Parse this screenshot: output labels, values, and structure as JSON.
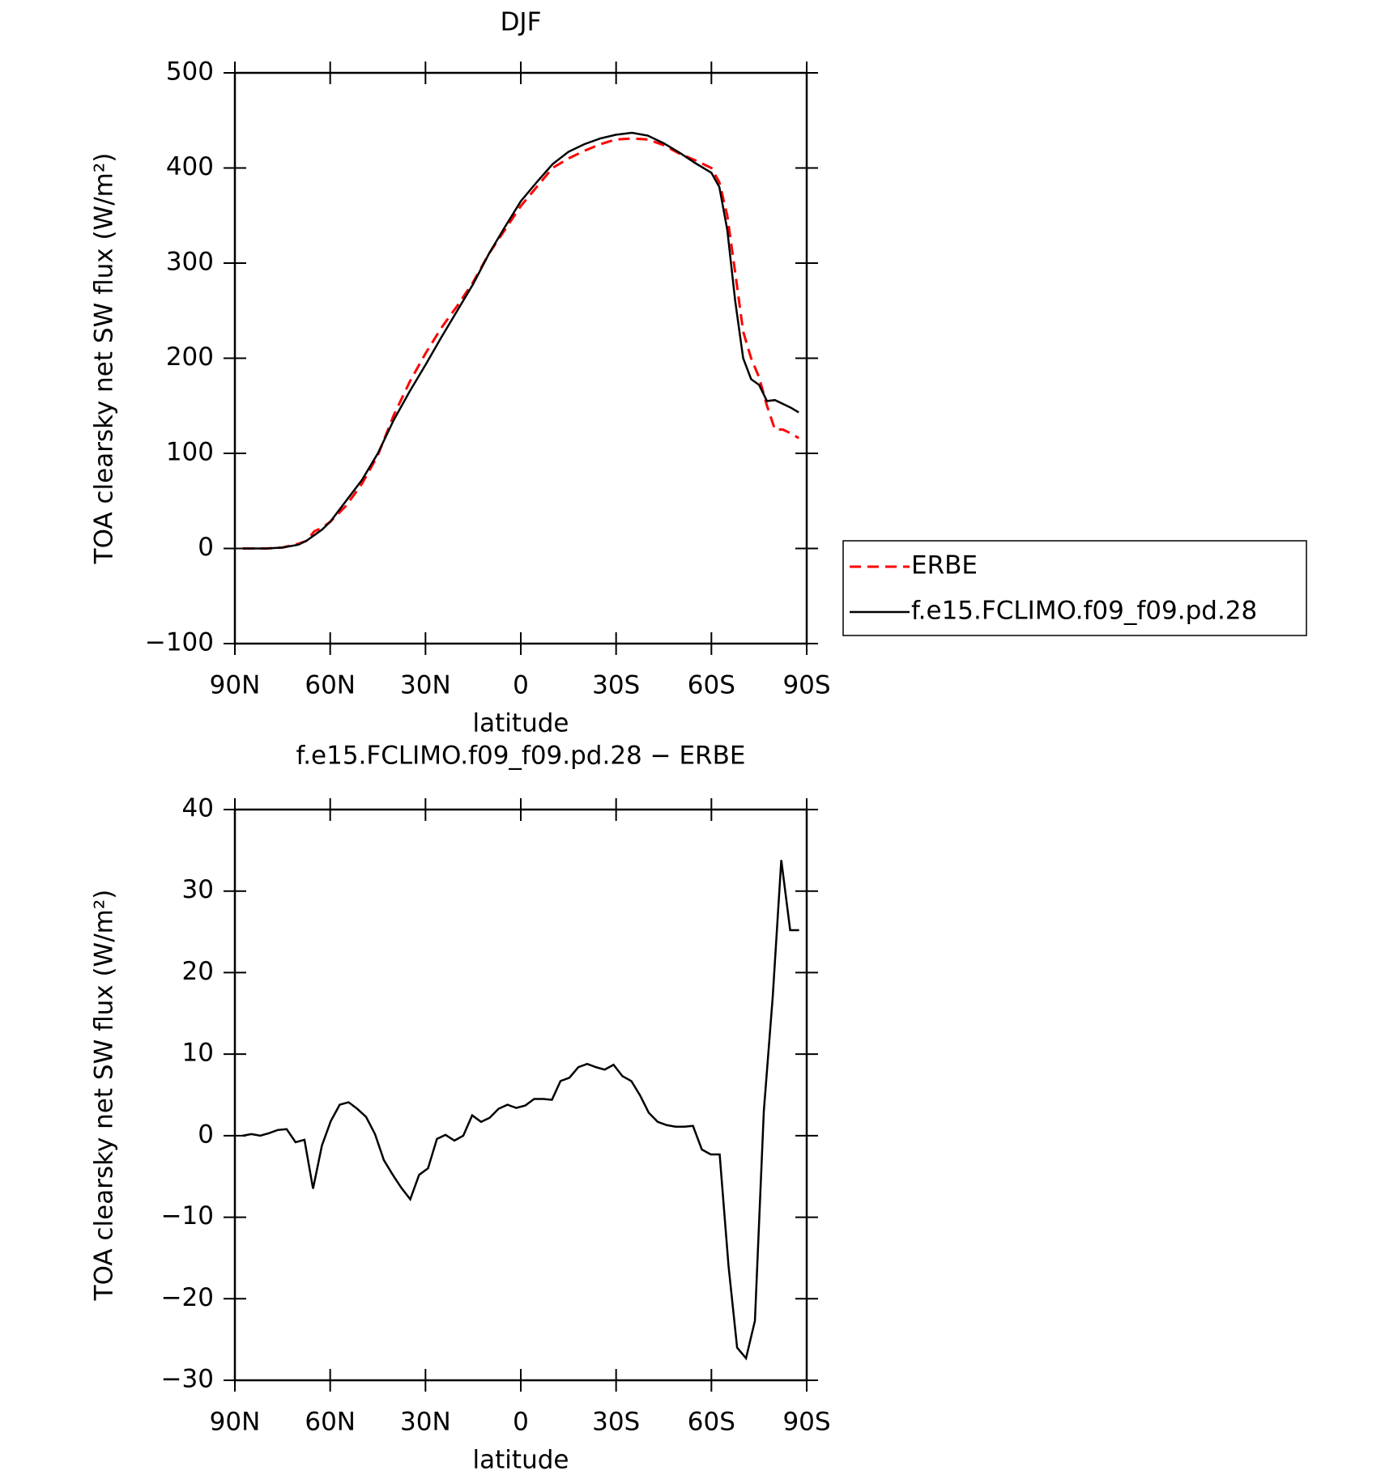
{
  "chart_data": [
    {
      "type": "line",
      "title": "DJF",
      "x_label": "latitude",
      "y_label": "TOA clearsky net SW flux (W/m²)",
      "x": [
        87.5,
        80,
        75,
        70,
        67.5,
        65,
        62.5,
        60,
        55,
        50,
        45,
        40,
        35,
        30,
        25,
        20,
        15,
        10,
        5,
        0,
        -5,
        -10,
        -15,
        -20,
        -25,
        -30,
        -35,
        -40,
        -45,
        -50,
        -55,
        -60,
        -62.5,
        -65,
        -67.5,
        -70,
        -72.5,
        -75,
        -77.5,
        -80,
        -82.5,
        -85,
        -87.5
      ],
      "series": [
        {
          "name": "ERBE",
          "color": "#ff0000",
          "dash": true,
          "values": [
            0,
            0,
            1,
            5,
            8,
            18,
            22,
            28,
            45,
            68,
            98,
            140,
            175,
            205,
            232,
            255,
            280,
            310,
            335,
            360,
            380,
            400,
            410,
            418,
            425,
            430,
            431,
            430,
            424,
            415,
            408,
            400,
            385,
            350,
            290,
            228,
            200,
            180,
            150,
            125,
            125,
            121,
            116
          ]
        },
        {
          "name": "f.e15.FCLIMO.f09_f09.pd.28",
          "color": "#000000",
          "dash": false,
          "values": [
            0,
            0,
            1,
            4,
            8,
            14,
            20,
            28,
            50,
            72,
            100,
            135,
            165,
            193,
            222,
            250,
            278,
            310,
            338,
            365,
            385,
            404,
            417,
            425,
            431,
            435,
            437,
            434,
            426,
            416,
            405,
            395,
            380,
            335,
            260,
            200,
            178,
            172,
            155,
            156,
            152,
            148,
            143
          ]
        }
      ],
      "xlim": [
        90,
        -90
      ],
      "xticks": [
        {
          "value": 90,
          "label": "90N"
        },
        {
          "value": 60,
          "label": "60N"
        },
        {
          "value": 30,
          "label": "30N"
        },
        0,
        {
          "value": -30,
          "label": "30S"
        },
        {
          "value": -60,
          "label": "60S"
        },
        {
          "value": -90,
          "label": "90S"
        }
      ],
      "ylim": [
        -100,
        500
      ],
      "yticks": [
        {
          "value": -100,
          "label": "−100"
        },
        0,
        100,
        200,
        300,
        400,
        500
      ],
      "legend_position": "right"
    },
    {
      "type": "line",
      "title": "f.e15.FCLIMO.f09_f09.pd.28 − ERBE",
      "x_label": "latitude",
      "y_label": "TOA clearsky net SW flux (W/m²)",
      "x": [
        87.6,
        84.8,
        82.0,
        79.3,
        76.5,
        73.7,
        70.9,
        68.1,
        65.4,
        62.6,
        59.8,
        57.0,
        54.2,
        51.5,
        48.7,
        45.9,
        43.1,
        40.3,
        37.6,
        34.8,
        32.0,
        29.2,
        26.4,
        23.7,
        20.9,
        18.1,
        15.3,
        12.5,
        9.8,
        7.0,
        4.2,
        1.4,
        -1.4,
        -4.2,
        -7.0,
        -9.8,
        -12.5,
        -15.3,
        -18.1,
        -20.9,
        -23.7,
        -26.4,
        -29.2,
        -32.0,
        -34.8,
        -37.6,
        -40.3,
        -43.1,
        -45.9,
        -48.7,
        -51.5,
        -54.2,
        -57.0,
        -59.8,
        -62.6,
        -65.4,
        -68.1,
        -70.9,
        -73.7,
        -76.5,
        -79.3,
        -82.0,
        -84.8,
        -87.6
      ],
      "series": [
        {
          "color": "#000000",
          "dash": false,
          "values": [
            0,
            0.2,
            0,
            0.3,
            0.7,
            0.8,
            -0.8,
            -0.5,
            -6.5,
            -1.2,
            1.8,
            3.8,
            4.1,
            3.3,
            2.3,
            0.2,
            -3,
            -4.8,
            -6.4,
            -7.8,
            -4.8,
            -4,
            -0.4,
            0.1,
            -0.6,
            0,
            2.5,
            1.7,
            2.2,
            3.3,
            3.8,
            3.4,
            3.7,
            4.5,
            4.5,
            4.4,
            6.7,
            7.1,
            8.4,
            8.8,
            8.4,
            8.1,
            8.7,
            7.3,
            6.7,
            4.9,
            2.8,
            1.7,
            1.3,
            1.1,
            1.1,
            1.2,
            -1.7,
            -2.3,
            -2.3,
            -16,
            -26,
            -27.3,
            -22.7,
            3,
            17,
            33.8,
            25.2,
            25.2
          ]
        }
      ],
      "xlim": [
        90,
        -90
      ],
      "xticks": [
        {
          "value": 90,
          "label": "90N"
        },
        {
          "value": 60,
          "label": "60N"
        },
        {
          "value": 30,
          "label": "30N"
        },
        0,
        {
          "value": -30,
          "label": "30S"
        },
        {
          "value": -60,
          "label": "60S"
        },
        {
          "value": -90,
          "label": "90S"
        }
      ],
      "ylim": [
        -30,
        40
      ],
      "yticks": [
        {
          "value": -30,
          "label": "−30"
        },
        {
          "value": -20,
          "label": "−20"
        },
        {
          "value": -10,
          "label": "−10"
        },
        0,
        10,
        20,
        30,
        40
      ]
    }
  ]
}
